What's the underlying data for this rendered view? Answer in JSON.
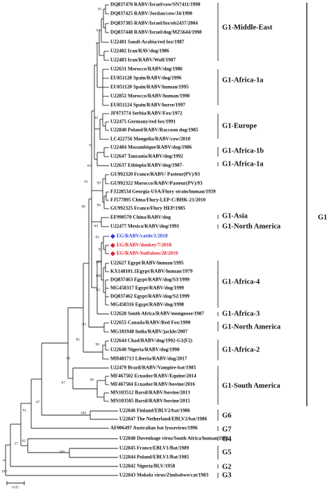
{
  "taxa": [
    {
      "label": "DQ837470 RABV/Israel/cow/SN7411/1998"
    },
    {
      "label": "DQ837425 RABV/Jordan/cow/J4/1998"
    },
    {
      "label": "DQ837385 RABV/Israel/fox/ob2437/2004"
    },
    {
      "label": "DQ837448 RABV/Israel/dog/MZ5644/1998"
    },
    {
      "label": "U22481 Saudi-Arabia/red fox/1987"
    },
    {
      "label": "U22482 Iran/RAV/dog/1986"
    },
    {
      "label": "U22483 Iran/RABV/Wolf/1987"
    },
    {
      "label": "U22631 Morocco/RABV/dog/1986"
    },
    {
      "label": "EU851128 Spain/RABV/dog/1996"
    },
    {
      "label": "EU851120 Spain/RABV/human/1995"
    },
    {
      "label": "U22852 Morocco/RABV/human/1990"
    },
    {
      "label": "EU851124 Spain/RABV/horse/1997"
    },
    {
      "label": "JF973774 Serbia/RABV/Fox/1972"
    },
    {
      "label": "U22475 Germany/red fox/1991"
    },
    {
      "label": "U22840 Poland/RABV/Raccoon dog/1985"
    },
    {
      "label": "LC422756 Mongolia/RABV/cow/2018"
    },
    {
      "label": "U22484 Mozambique/RABV/dog/1986"
    },
    {
      "label": "U22647 Tanzania/RABV/dog/1992"
    },
    {
      "label": "U22637 Ethiopia/RABV/dog/1987-"
    },
    {
      "label": "GU992320 France/RABV/ Pasteur(PV)/93"
    },
    {
      "label": "GU992322 Morocco/RABV/Pasteur(PV)/93"
    },
    {
      "label": "FJ228534 Georgia-USA/Flury strain/human/1939"
    },
    {
      "label": "FJ577895 China/Flury-LEP-C/BHK-21/2010"
    },
    {
      "label": "GU992325 France/Flury HEP/1985"
    },
    {
      "label": "EF990570 China/RABV/dog"
    },
    {
      "label": "U22477 Mexico/RABV/dog/1991"
    },
    {
      "label": "EG/RABV/cattle/1/2018",
      "color": "#2a3fd8"
    },
    {
      "label": "EG/RABV/donkey/7/2018",
      "color": "#e0202a"
    },
    {
      "label": "EG/RABV/buffaloes/28/2019",
      "color": "#e0202a"
    },
    {
      "label": "U22627 Egypt/RABV/human/1995"
    },
    {
      "label": "KX148101.1Egypt/RABV/human/1979"
    },
    {
      "label": "DQ837463 Egypt/RABV/dog/S3/1999"
    },
    {
      "label": "MG458317 Egypt/RABV/dog/1999"
    },
    {
      "label": "DQ837462 Egypt/RABV/dog/S2/1999"
    },
    {
      "label": "MG458316 Egypt/RABV/dog/1998"
    },
    {
      "label": "U22628 South Africa/RABV/mongoose/1987"
    },
    {
      "label": "U22655 Canada/RABV/Red Fox/1990"
    },
    {
      "label": "MG181948 India/RABV/jackle/2007"
    },
    {
      "label": "U22644 Chad/RABV/dog/1992-G1(F2)"
    },
    {
      "label": "U22640 Nigeria/RABV/dog/1990"
    },
    {
      "label": "MH481713 Liberia/RABV/dog/2017"
    },
    {
      "label": "U22479 Brazil/RABV/Vampire-bat/1985"
    },
    {
      "label": "MF467502 Ecuador/RABV/Equine/2014"
    },
    {
      "label": "MF467504 Ecuador/RABV/bovine/2016"
    },
    {
      "label": "MN103512 Barsil/RABV/bovine/2013"
    },
    {
      "label": "MN103505 Barsil/RABV/bovine/2015"
    },
    {
      "label": "U22846 Finland/EBLV2/bat/1986"
    },
    {
      "label": "U22847 The Netherland/EBLV2/bat/1986"
    },
    {
      "label": "AF006497 Australian bat lyssavirus/1996"
    },
    {
      "label": "U22848 Duvenhage virus/South Africa/human/1986"
    },
    {
      "label": "U22845 France/EBLV1/Bat/1989"
    },
    {
      "label": "U22844 Poland/EBLV1/Bat/1985"
    },
    {
      "label": "U22842 Nigeria/BLV/1958"
    },
    {
      "label": "U22843 Mokola virus/Zimbabwe/cat/1983"
    }
  ],
  "bootstrap": [
    94,
    97,
    94,
    75,
    64,
    61,
    99,
    96,
    88,
    60,
    65,
    95,
    100,
    100,
    62,
    93,
    85,
    90,
    98,
    98,
    67,
    100,
    47,
    91,
    62,
    57,
    100,
    100
  ],
  "clades": [
    "G1-Middle-East",
    "G1-Africa-1a",
    "G1-Europe",
    "G1-Africa-1b",
    "G1-Africa-1a",
    "G1-Asia",
    "G1-North America",
    "G1-Africa-4",
    "G1-Africa-3",
    "G1-North America",
    "G1-Africa-2",
    "G1-South America",
    "G6",
    "G7",
    "G4",
    "G5",
    "G2",
    "G3"
  ],
  "outgroup_label": "G1",
  "scale_bar": "0.05"
}
